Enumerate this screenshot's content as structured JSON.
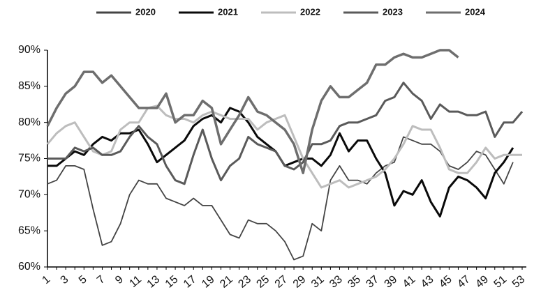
{
  "chart_data": {
    "type": "line",
    "categories": [
      1,
      null,
      3,
      null,
      5,
      null,
      7,
      null,
      9,
      null,
      11,
      null,
      13,
      null,
      15,
      null,
      17,
      null,
      19,
      null,
      21,
      null,
      23,
      null,
      25,
      null,
      27,
      null,
      29,
      null,
      31,
      null,
      33,
      null,
      35,
      null,
      37,
      null,
      39,
      null,
      41,
      null,
      43,
      null,
      45,
      null,
      47,
      null,
      49,
      null,
      51,
      null,
      53
    ],
    "ylim": [
      60,
      90
    ],
    "yticks": [
      {
        "value": 60,
        "label": "60%"
      },
      {
        "value": 65,
        "label": "65%"
      },
      {
        "value": 70,
        "label": "70%"
      },
      {
        "value": 75,
        "label": "75%"
      },
      {
        "value": 80,
        "label": "80%"
      },
      {
        "value": 85,
        "label": "85%"
      },
      {
        "value": 90,
        "label": "90%"
      }
    ],
    "legend": "top",
    "series": [
      {
        "name": "2020",
        "color": "#444444",
        "width": 1.8,
        "values": [
          71.5,
          72,
          74,
          74,
          73.5,
          68,
          63,
          63.5,
          66,
          70,
          72,
          71.5,
          71.5,
          69.5,
          69,
          68.5,
          69.5,
          68.5,
          68.5,
          66.5,
          64.5,
          64,
          66.5,
          66,
          66,
          65,
          63.5,
          61,
          61.5,
          66,
          65,
          72,
          74,
          72,
          72,
          71.5,
          73,
          74,
          74.5,
          78,
          77.5,
          77,
          77,
          76,
          74,
          73.5,
          74.5,
          76,
          75.5,
          73.5,
          71.5,
          74.5,
          null
        ]
      },
      {
        "name": "2021",
        "color": "#0a0a0a",
        "width": 3,
        "values": [
          74,
          74,
          75,
          76,
          75.5,
          77,
          78,
          77.5,
          78.5,
          78.5,
          79,
          77,
          74.5,
          75.5,
          76.5,
          77.5,
          79.5,
          80.5,
          81,
          80,
          82,
          81.5,
          80,
          78,
          77,
          76,
          74,
          74.5,
          75,
          75,
          74,
          75.5,
          78.5,
          76,
          77.5,
          77.5,
          75,
          73,
          68.5,
          70.5,
          70,
          72,
          69,
          67,
          71,
          72.5,
          72,
          71,
          69.5,
          73,
          74.5,
          76.5,
          null
        ]
      },
      {
        "name": "2022",
        "color": "#bdbdbd",
        "width": 3,
        "values": [
          77,
          78.5,
          79.5,
          80,
          78,
          76,
          75.5,
          76,
          79,
          80,
          80,
          82,
          82.3,
          81,
          80.5,
          80.5,
          80,
          81,
          81.5,
          81,
          80.5,
          80.5,
          80.5,
          79,
          80,
          80.5,
          81,
          78,
          75,
          73,
          71,
          71.5,
          72,
          71,
          71.5,
          72,
          72.5,
          73.5,
          75,
          77,
          79.5,
          79,
          79,
          76.5,
          73.5,
          73,
          73,
          74.5,
          76.5,
          75,
          75.5,
          75.5,
          75.5
        ]
      },
      {
        "name": "2023",
        "color": "#5a5a5a",
        "width": 3,
        "values": [
          75,
          75,
          75,
          76.5,
          76,
          76.5,
          75.5,
          75.5,
          76,
          78,
          79.5,
          78,
          77,
          74,
          72,
          71.5,
          75.5,
          79,
          75,
          72,
          74,
          75,
          78,
          77,
          76.5,
          76,
          74,
          73.5,
          74.5,
          77,
          77,
          77.5,
          79.5,
          80,
          80,
          80.5,
          81,
          83,
          83.5,
          85.5,
          84,
          83,
          80.5,
          82.5,
          81.5,
          81.5,
          81,
          81,
          81.5,
          78,
          80,
          80,
          81.5
        ]
      },
      {
        "name": "2024",
        "color": "#6e6e6e",
        "width": 3.5,
        "values": [
          79.5,
          82,
          84,
          85,
          87,
          87,
          85.5,
          86.5,
          85,
          83.5,
          82,
          82,
          82,
          84,
          80,
          81,
          81,
          83,
          82,
          77,
          79,
          81,
          83.5,
          81.5,
          81,
          80,
          79,
          77,
          73,
          79,
          83,
          85,
          83.5,
          83.5,
          84.5,
          85.5,
          88,
          88,
          89,
          89.5,
          89,
          89,
          89.5,
          90,
          90,
          89,
          null,
          null,
          null,
          null,
          null,
          null,
          null
        ]
      }
    ]
  }
}
